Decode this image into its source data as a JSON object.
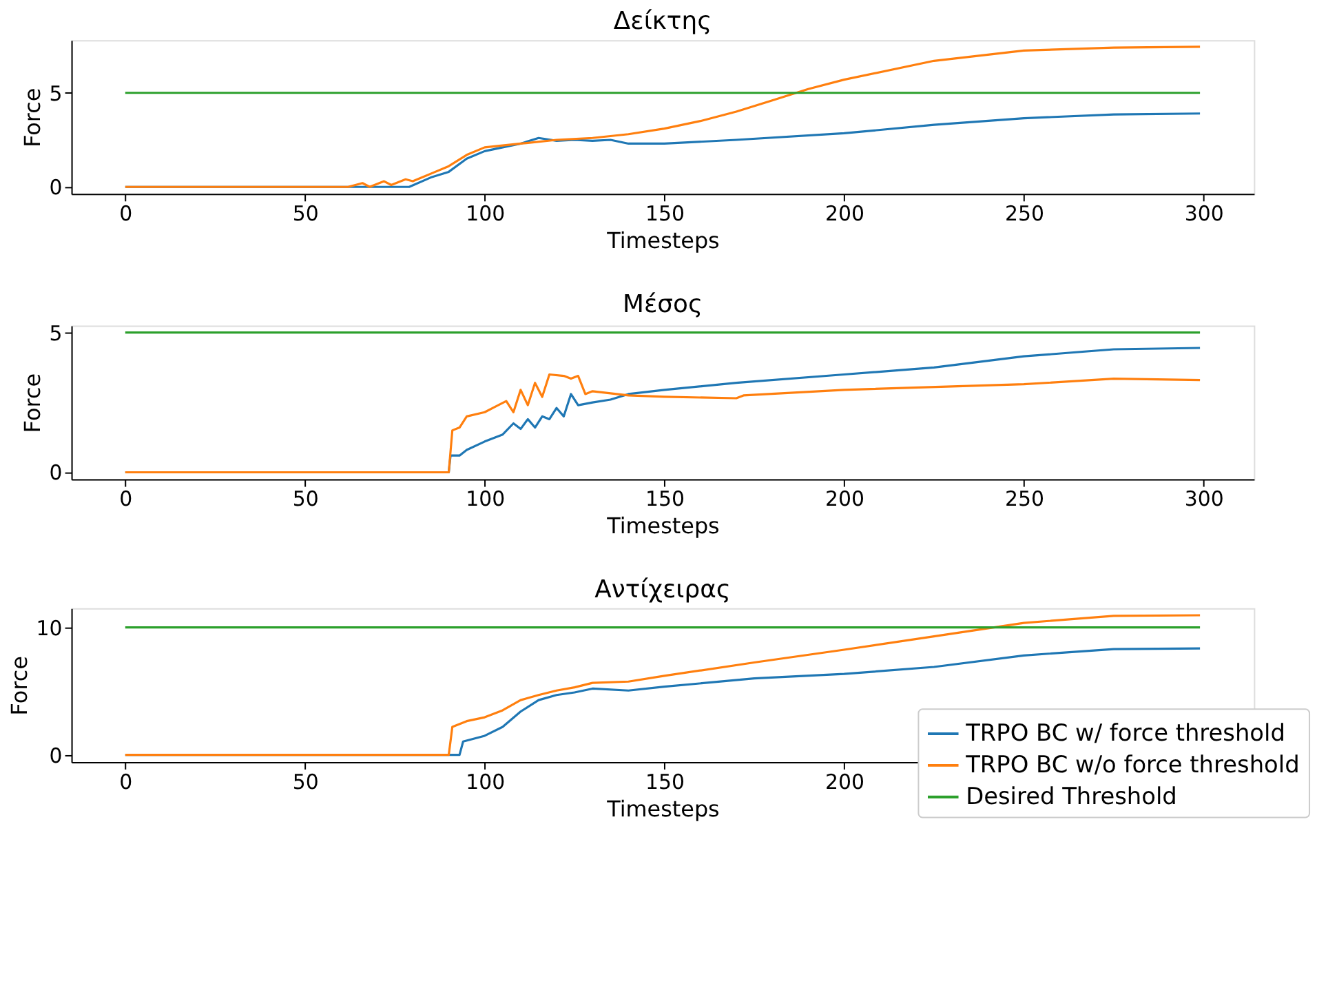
{
  "chart_data": [
    {
      "type": "line",
      "title": "Δείκτης",
      "xlabel": "Timesteps",
      "ylabel": "Force",
      "xlim": [
        -15,
        314
      ],
      "xticks": [
        0,
        50,
        100,
        150,
        200,
        250,
        300
      ],
      "ylim": [
        -0.37,
        7.8
      ],
      "yticks": [
        0,
        5
      ],
      "grid": false,
      "legend": false,
      "series": [
        {
          "color": "#1f77b4",
          "x": [
            0,
            79,
            85,
            90,
            95,
            100,
            105,
            110,
            115,
            120,
            125,
            130,
            135,
            140,
            150,
            170,
            200,
            225,
            250,
            275,
            299
          ],
          "values": [
            0,
            0,
            0.5,
            0.8,
            1.5,
            1.9,
            2.1,
            2.3,
            2.6,
            2.45,
            2.5,
            2.45,
            2.5,
            2.3,
            2.3,
            2.5,
            2.85,
            3.3,
            3.65,
            3.85,
            3.9
          ]
        },
        {
          "color": "#ff7f0e",
          "x": [
            0,
            62,
            66,
            68,
            72,
            74,
            78,
            80,
            85,
            90,
            95,
            100,
            110,
            120,
            130,
            140,
            150,
            160,
            170,
            180,
            190,
            200,
            225,
            250,
            275,
            299
          ],
          "values": [
            0,
            0,
            0.2,
            0,
            0.3,
            0.1,
            0.4,
            0.3,
            0.7,
            1.1,
            1.7,
            2.1,
            2.3,
            2.5,
            2.6,
            2.8,
            3.1,
            3.5,
            4.0,
            4.6,
            5.2,
            5.7,
            6.7,
            7.25,
            7.4,
            7.45
          ]
        },
        {
          "color": "#2ca02c",
          "x": [
            0,
            299
          ],
          "values": [
            5,
            5
          ]
        }
      ]
    },
    {
      "type": "line",
      "title": "Μέσος",
      "xlabel": "Timesteps",
      "ylabel": "Force",
      "xlim": [
        -15,
        314
      ],
      "xticks": [
        0,
        50,
        100,
        150,
        200,
        250,
        300
      ],
      "ylim": [
        -0.25,
        5.25
      ],
      "yticks": [
        0,
        5
      ],
      "grid": false,
      "legend": false,
      "series": [
        {
          "color": "#1f77b4",
          "x": [
            0,
            90,
            90.5,
            93,
            95,
            100,
            105,
            108,
            110,
            112,
            114,
            116,
            118,
            120,
            122,
            124,
            126,
            130,
            135,
            140,
            150,
            170,
            200,
            225,
            250,
            275,
            299
          ],
          "values": [
            0,
            0,
            0.6,
            0.6,
            0.8,
            1.1,
            1.35,
            1.75,
            1.55,
            1.9,
            1.6,
            2.0,
            1.9,
            2.3,
            2.0,
            2.8,
            2.4,
            2.5,
            2.6,
            2.8,
            2.95,
            3.2,
            3.5,
            3.75,
            4.15,
            4.4,
            4.45
          ]
        },
        {
          "color": "#ff7f0e",
          "x": [
            0,
            90,
            91,
            93,
            95,
            100,
            103,
            106,
            108,
            110,
            112,
            114,
            116,
            118,
            122,
            124,
            126,
            128,
            130,
            140,
            150,
            170,
            172,
            200,
            250,
            275,
            299
          ],
          "values": [
            0,
            0,
            1.5,
            1.6,
            2.0,
            2.15,
            2.35,
            2.55,
            2.15,
            2.95,
            2.4,
            3.2,
            2.7,
            3.5,
            3.45,
            3.35,
            3.45,
            2.8,
            2.9,
            2.75,
            2.7,
            2.65,
            2.75,
            2.95,
            3.15,
            3.35,
            3.3
          ]
        },
        {
          "color": "#2ca02c",
          "x": [
            0,
            299
          ],
          "values": [
            5,
            5
          ]
        }
      ]
    },
    {
      "type": "line",
      "title": "Αντίχειρας",
      "xlabel": "Timesteps",
      "ylabel": "Force",
      "xlim": [
        -15,
        314
      ],
      "xticks": [
        0,
        50,
        100,
        150,
        200,
        250,
        300
      ],
      "ylim": [
        -0.55,
        11.5
      ],
      "yticks": [
        0,
        10
      ],
      "grid": false,
      "legend": "bottom right",
      "series": [
        {
          "name": "TRPO BC w/ force threshold",
          "color": "#1f77b4",
          "x": [
            0,
            93,
            94,
            100,
            105,
            110,
            115,
            120,
            125,
            130,
            140,
            150,
            175,
            200,
            225,
            250,
            275,
            299
          ],
          "values": [
            0,
            0,
            1.05,
            1.5,
            2.2,
            3.4,
            4.3,
            4.7,
            4.9,
            5.2,
            5.05,
            5.35,
            6.0,
            6.35,
            6.9,
            7.8,
            8.3,
            8.35
          ]
        },
        {
          "name": "TRPO BC w/o force threshold",
          "color": "#ff7f0e",
          "x": [
            0,
            90,
            91,
            95,
            100,
            105,
            110,
            115,
            120,
            125,
            130,
            140,
            150,
            175,
            200,
            225,
            250,
            275,
            299
          ],
          "values": [
            0,
            0,
            2.2,
            2.65,
            2.95,
            3.5,
            4.3,
            4.7,
            5.05,
            5.3,
            5.65,
            5.75,
            6.2,
            7.25,
            8.25,
            9.3,
            10.35,
            10.9,
            10.95
          ]
        },
        {
          "name": "Desired Threshold",
          "color": "#2ca02c",
          "x": [
            0,
            299
          ],
          "values": [
            10,
            10
          ]
        }
      ]
    }
  ]
}
